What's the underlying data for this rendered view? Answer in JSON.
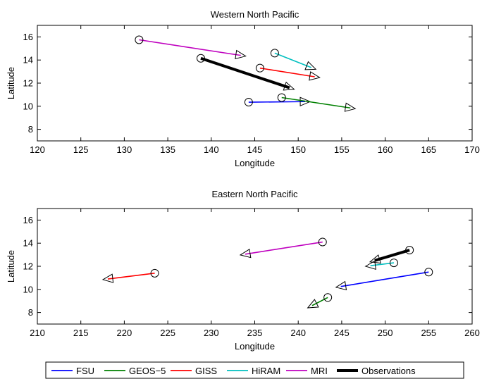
{
  "chart_data": [
    {
      "type": "scatter",
      "title": "Western North Pacific",
      "xlabel": "Longitude",
      "ylabel": "Latitude",
      "xlim": [
        120,
        170
      ],
      "ylim": [
        7,
        17
      ],
      "xticks": [
        120,
        125,
        130,
        135,
        140,
        145,
        150,
        155,
        160,
        165,
        170
      ],
      "yticks": [
        8,
        10,
        12,
        14,
        16
      ],
      "grid": false,
      "series": [
        {
          "name": "FSU",
          "color": "#0000ff",
          "start": [
            144.3,
            10.35
          ],
          "end": [
            150.8,
            10.4
          ]
        },
        {
          "name": "GEOS-5",
          "color": "#008000",
          "start": [
            148.1,
            10.75
          ],
          "end": [
            156.0,
            9.85
          ]
        },
        {
          "name": "GISS",
          "color": "#ff0000",
          "start": [
            145.6,
            13.3
          ],
          "end": [
            151.9,
            12.55
          ]
        },
        {
          "name": "HiRAM",
          "color": "#00bfbf",
          "start": [
            147.3,
            14.6
          ],
          "end": [
            151.5,
            13.35
          ]
        },
        {
          "name": "MRI",
          "color": "#bf00bf",
          "start": [
            131.7,
            15.75
          ],
          "end": [
            143.4,
            14.4
          ]
        },
        {
          "name": "Observations",
          "color": "#000000",
          "start": [
            138.8,
            14.15
          ],
          "end": [
            149.0,
            11.6
          ]
        }
      ]
    },
    {
      "type": "scatter",
      "title": "Eastern North Pacific",
      "xlabel": "Longitude",
      "ylabel": "Latitude",
      "xlim": [
        210,
        260
      ],
      "ylim": [
        7,
        17
      ],
      "xticks": [
        210,
        215,
        220,
        225,
        230,
        235,
        240,
        245,
        250,
        255,
        260
      ],
      "yticks": [
        8,
        10,
        12,
        14,
        16
      ],
      "grid": false,
      "series": [
        {
          "name": "FSU",
          "color": "#0000ff",
          "start": [
            255.0,
            11.5
          ],
          "end": [
            244.9,
            10.25
          ]
        },
        {
          "name": "GEOS-5",
          "color": "#008000",
          "start": [
            243.4,
            9.3
          ],
          "end": [
            241.6,
            8.6
          ]
        },
        {
          "name": "GISS",
          "color": "#ff0000",
          "start": [
            223.5,
            11.4
          ],
          "end": [
            218.1,
            10.9
          ]
        },
        {
          "name": "HiRAM",
          "color": "#00bfbf",
          "start": [
            251.0,
            12.3
          ],
          "end": [
            248.3,
            12.05
          ]
        },
        {
          "name": "MRI",
          "color": "#bf00bf",
          "start": [
            242.8,
            14.1
          ],
          "end": [
            233.9,
            13.05
          ]
        },
        {
          "name": "Observations",
          "color": "#000000",
          "start": [
            252.8,
            13.4
          ],
          "end": [
            248.8,
            12.5
          ]
        }
      ]
    }
  ],
  "legend": {
    "placement": "bottom",
    "entries": [
      {
        "label": "FSU",
        "color": "#0000ff"
      },
      {
        "label": "GEOS−5",
        "color": "#008000"
      },
      {
        "label": "GISS",
        "color": "#ff0000"
      },
      {
        "label": "HiRAM",
        "color": "#00bfbf"
      },
      {
        "label": "MRI",
        "color": "#bf00bf"
      },
      {
        "label": "Observations",
        "color": "#000000"
      }
    ]
  }
}
